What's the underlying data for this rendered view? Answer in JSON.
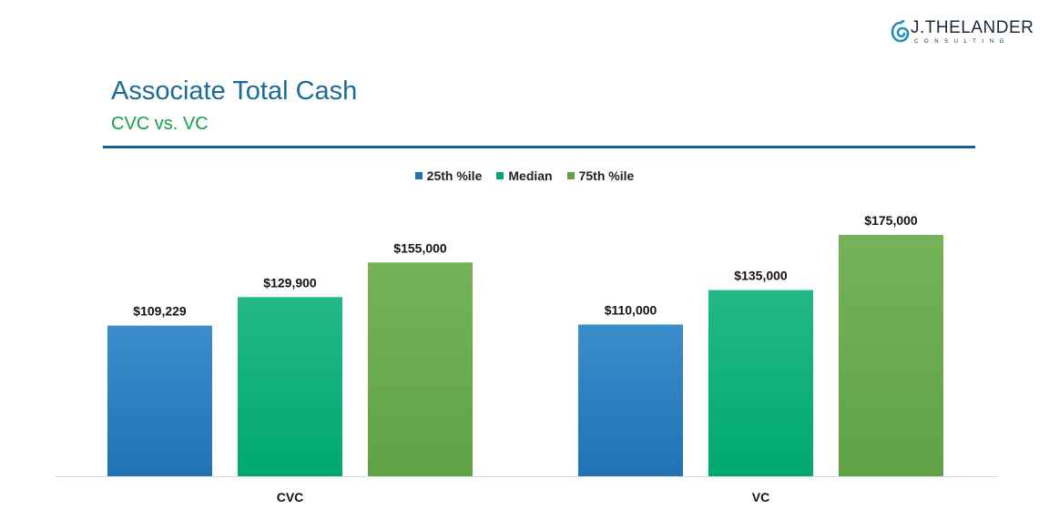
{
  "brand": {
    "name": "J.THELANDER",
    "tagline": "CONSULTING",
    "icon": "spiral-logo-icon",
    "color": "#1e8fbf"
  },
  "header": {
    "title": "Associate Total Cash",
    "subtitle": "CVC vs. VC"
  },
  "colors": {
    "title": "#1b6b96",
    "subtitle": "#14a04b",
    "rule": "#16628e"
  },
  "chart_data": {
    "type": "bar",
    "title": "",
    "xlabel": "",
    "ylabel": "",
    "legend_position": "top-center",
    "grid": false,
    "ylim": [
      0,
      175000
    ],
    "categories": [
      "CVC",
      "VC"
    ],
    "series": [
      {
        "name": "25th %ile",
        "values": [
          109229,
          110000
        ],
        "labels": [
          "$109,229",
          "$110,000"
        ],
        "color": "#1f72b4",
        "color_light": "#3b8dcb"
      },
      {
        "name": "Median",
        "values": [
          129900,
          135000
        ],
        "labels": [
          "$129,900",
          "$135,000"
        ],
        "color": "#00a870",
        "color_light": "#22b986"
      },
      {
        "name": "75th %ile",
        "values": [
          155000,
          175000
        ],
        "labels": [
          "$155,000",
          "$175,000"
        ],
        "color": "#60a245",
        "color_light": "#76b25a"
      }
    ]
  }
}
